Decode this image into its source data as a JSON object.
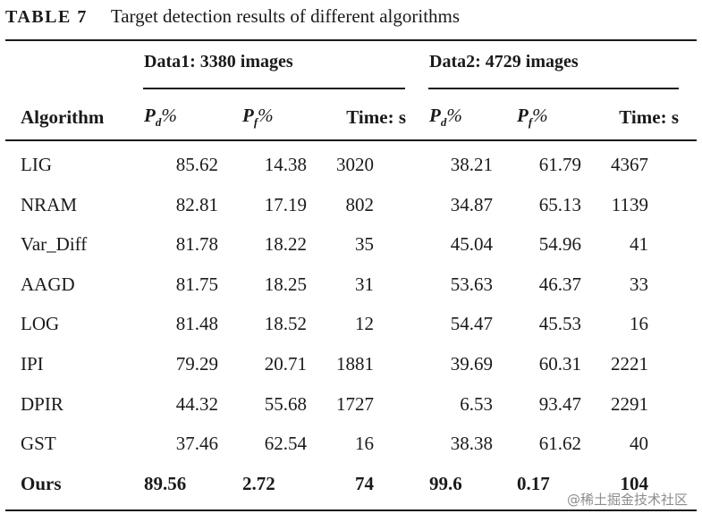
{
  "caption": {
    "label": "TABLE 7",
    "text": "Target detection results of different algorithms"
  },
  "groups": [
    {
      "label": "Data1: 3380 images"
    },
    {
      "label": "Data2: 4729 images"
    }
  ],
  "headers": {
    "algorithm": "Algorithm",
    "pd": {
      "sym": "P",
      "sub": "d",
      "unit": "%"
    },
    "pf": {
      "sym": "P",
      "sub": "f",
      "unit": "%"
    },
    "time": "Time: s"
  },
  "rows": [
    {
      "name": "LIG",
      "d1": [
        "85.62",
        "14.38",
        "3020"
      ],
      "d2": [
        "38.21",
        "61.79",
        "4367"
      ]
    },
    {
      "name": "NRAM",
      "d1": [
        "82.81",
        "17.19",
        "802"
      ],
      "d2": [
        "34.87",
        "65.13",
        "1139"
      ]
    },
    {
      "name": "Var_Diff",
      "d1": [
        "81.78",
        "18.22",
        "35"
      ],
      "d2": [
        "45.04",
        "54.96",
        "41"
      ]
    },
    {
      "name": "AAGD",
      "d1": [
        "81.75",
        "18.25",
        "31"
      ],
      "d2": [
        "53.63",
        "46.37",
        "33"
      ]
    },
    {
      "name": "LOG",
      "d1": [
        "81.48",
        "18.52",
        "12"
      ],
      "d2": [
        "54.47",
        "45.53",
        "16"
      ]
    },
    {
      "name": "IPI",
      "d1": [
        "79.29",
        "20.71",
        "1881"
      ],
      "d2": [
        "39.69",
        "60.31",
        "2221"
      ]
    },
    {
      "name": "DPIR",
      "d1": [
        "44.32",
        "55.68",
        "1727"
      ],
      "d2": [
        "6.53",
        "93.47",
        "2291"
      ]
    },
    {
      "name": "GST",
      "d1": [
        "37.46",
        "62.54",
        "16"
      ],
      "d2": [
        "38.38",
        "61.62",
        "40"
      ]
    }
  ],
  "ours": {
    "name": "Ours",
    "d1": [
      "89.56",
      "2.72",
      "74"
    ],
    "d2": [
      "99.6",
      "0.17",
      "104"
    ]
  },
  "watermark": "@稀土掘金技术社区"
}
